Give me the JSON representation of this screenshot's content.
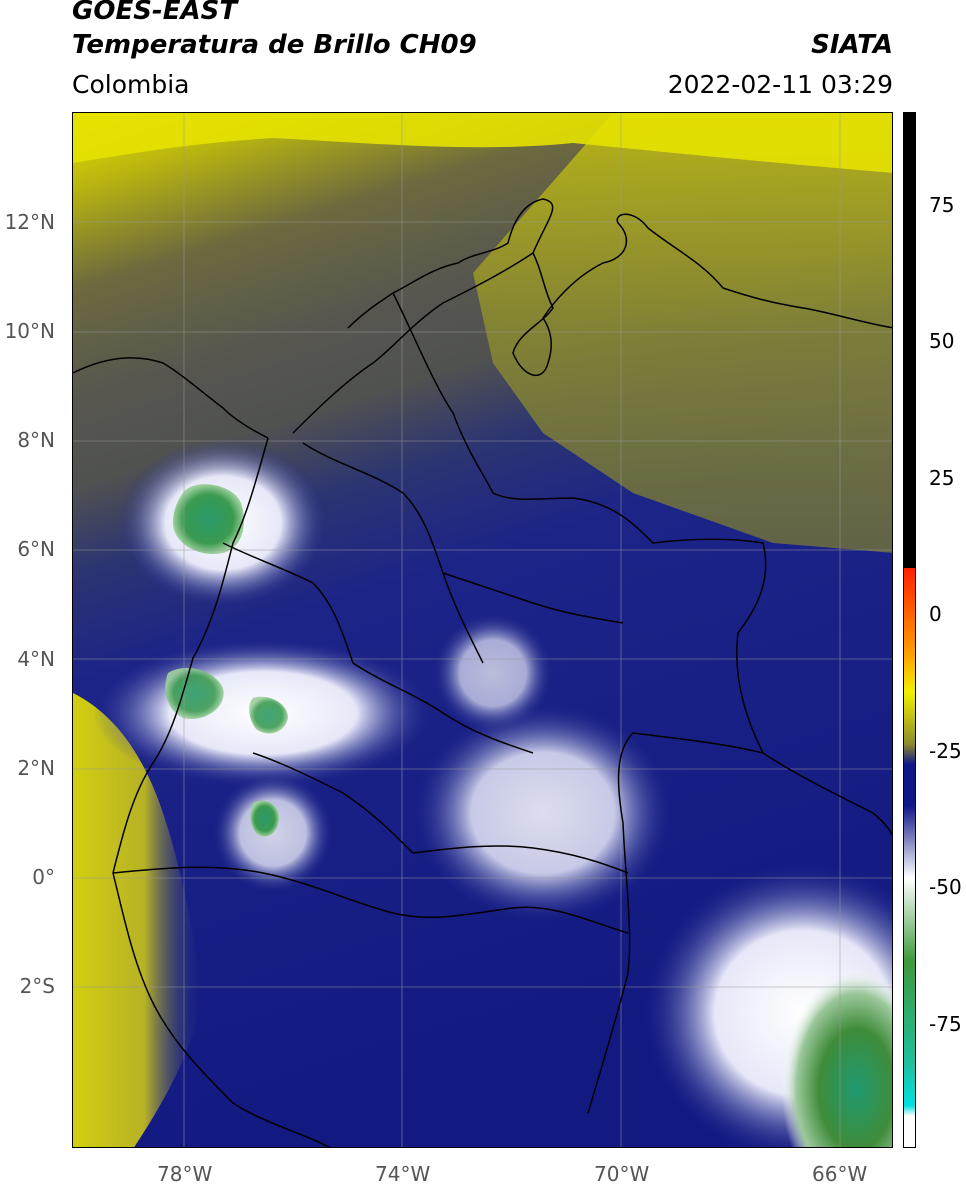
{
  "header": {
    "title_line1": "GOES-EAST",
    "title_line2": "Temperatura de Brillo CH09",
    "region": "Colombia",
    "source": "SIATA",
    "timestamp": "2022-02-11 03:29"
  },
  "map": {
    "lat_labels": [
      "12°N",
      "10°N",
      "8°N",
      "6°N",
      "4°N",
      "2°N",
      "0°",
      "2°S"
    ],
    "lon_labels": [
      "78°W",
      "74°W",
      "70°W",
      "66°W"
    ]
  },
  "colorbar": {
    "labels": [
      "75",
      "50",
      "25",
      "0",
      "-25",
      "-50",
      "-75"
    ],
    "colors": {
      "black": "#000000",
      "red": "#ff2000",
      "orange": "#ff9a00",
      "yellow": "#f2f000",
      "olive": "#8c8c2a",
      "navy": "#101888",
      "white": "#ffffff",
      "green": "#3c9a3c",
      "teal": "#1fc0a0",
      "cyan": "#00e0e0"
    }
  }
}
